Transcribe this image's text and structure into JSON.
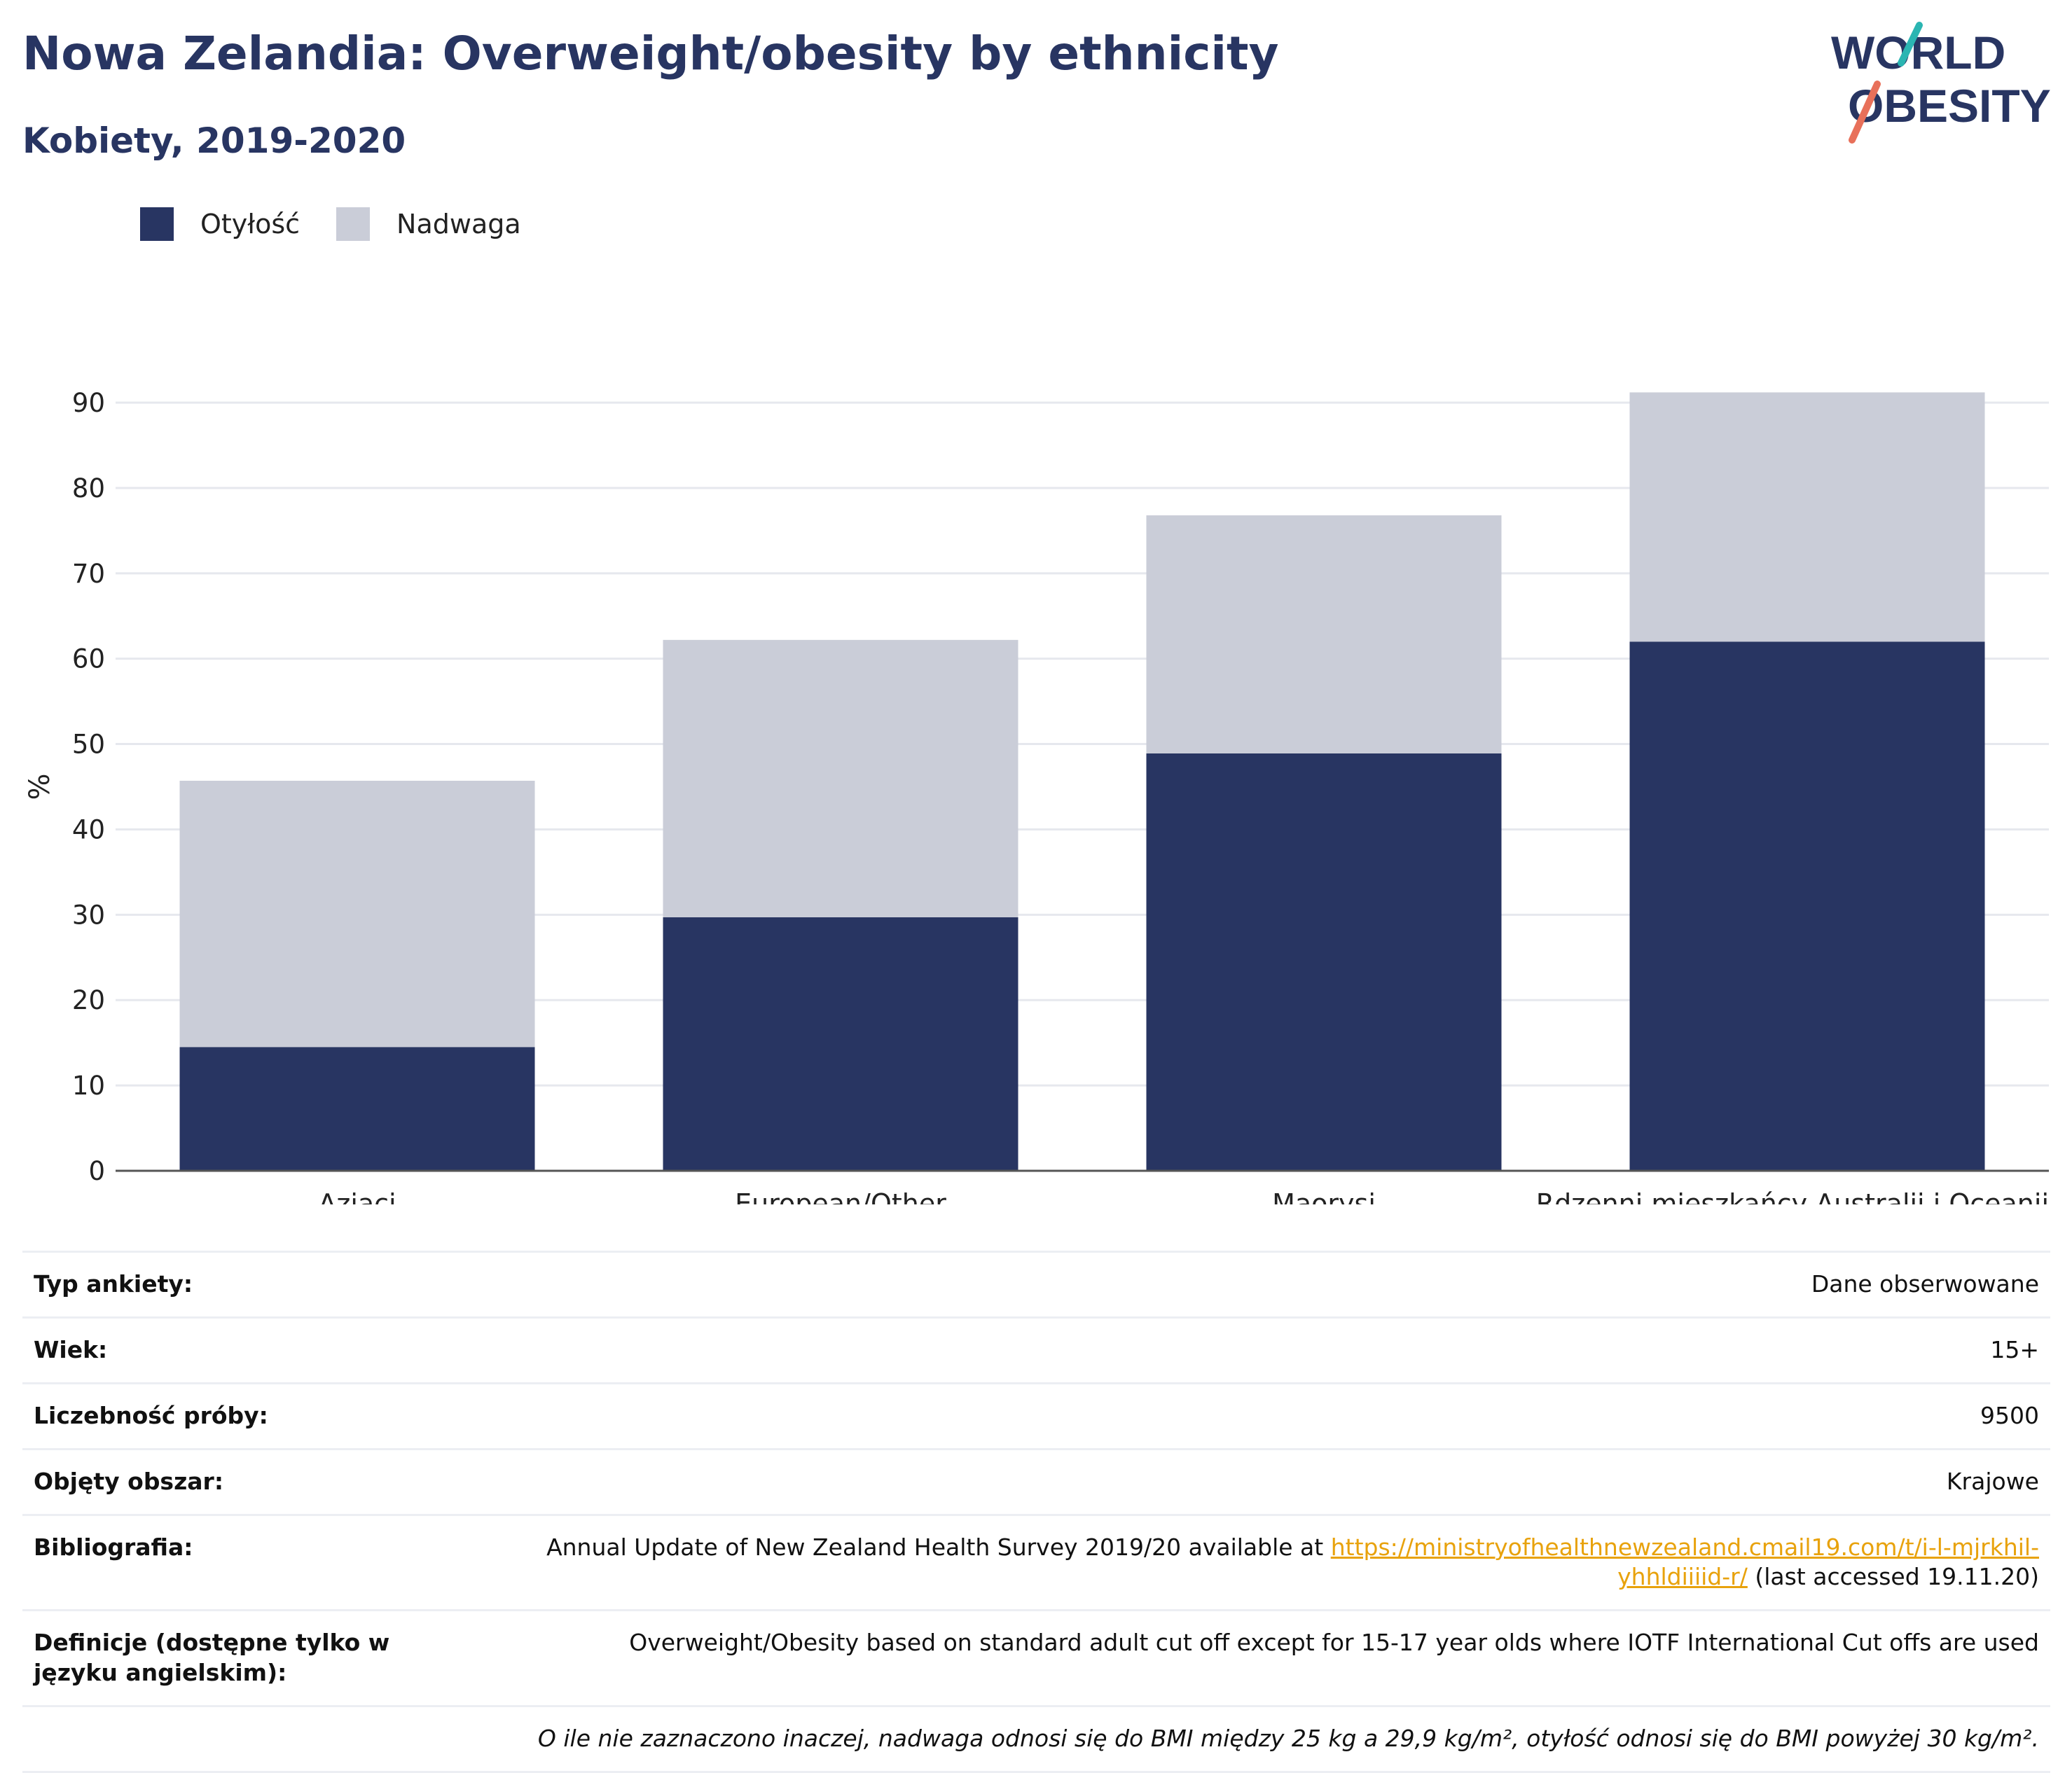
{
  "header": {
    "title": "Nowa Zelandia: Overweight/obesity by ethnicity",
    "subtitle": "Kobiety, 2019-2020",
    "logo_line1": "WORLD",
    "logo_line2": "OBESITY"
  },
  "colors": {
    "obesity": "#283562",
    "overweight": "#cacdd8",
    "text_dark": "#283562",
    "link": "#e8a20c",
    "logo_teal": "#2bb5b2",
    "logo_coral": "#e8705a"
  },
  "chart_data": {
    "type": "bar",
    "stacked": true,
    "categories": [
      "Azjaci",
      "European/Other",
      "Maorysi",
      "Rdzenni mieszkańcy Australii i Oceanii"
    ],
    "series": [
      {
        "name": "Otyłość",
        "values": [
          14.5,
          29.7,
          48.9,
          62.0
        ]
      },
      {
        "name": "Nadwaga",
        "values": [
          31.2,
          32.5,
          27.9,
          29.2
        ]
      }
    ],
    "ylabel": "%",
    "ylim": [
      0,
      90
    ],
    "yticks": [
      0,
      10,
      20,
      30,
      40,
      50,
      60,
      70,
      80,
      90
    ],
    "grid": true,
    "legend_position": "top-left"
  },
  "legend": [
    {
      "label": "Otyłość"
    },
    {
      "label": "Nadwaga"
    }
  ],
  "info": {
    "survey_type": {
      "label": "Typ ankiety:",
      "value": "Dane obserwowane"
    },
    "age": {
      "label": "Wiek:",
      "value": "15+"
    },
    "sample_size": {
      "label": "Liczebność próby:",
      "value": "9500"
    },
    "area": {
      "label": "Objęty obszar:",
      "value": "Krajowe"
    },
    "bibliography": {
      "label": "Bibliografia:",
      "text": "Annual Update of New Zealand Health Survey 2019/20 available at ",
      "link_line1": "https://ministryofhealthnewzealand.cmail19.com/t/i-l-mjrkhil-",
      "link_line2": "yhhldiiiid-r/",
      "suffix": " (last accessed 19.11.20)"
    },
    "definitions": {
      "label": "Definicje (dostępne tylko w języku angielskim):",
      "value": "Overweight/Obesity based on standard adult cut off except for 15-17 year olds where IOTF International Cut offs are used"
    },
    "note": "O ile nie zaznaczono inaczej, nadwaga odnosi się do BMI między 25 kg a 29,9 kg/m², otyłość odnosi się do BMI powyżej 30 kg/m²."
  }
}
